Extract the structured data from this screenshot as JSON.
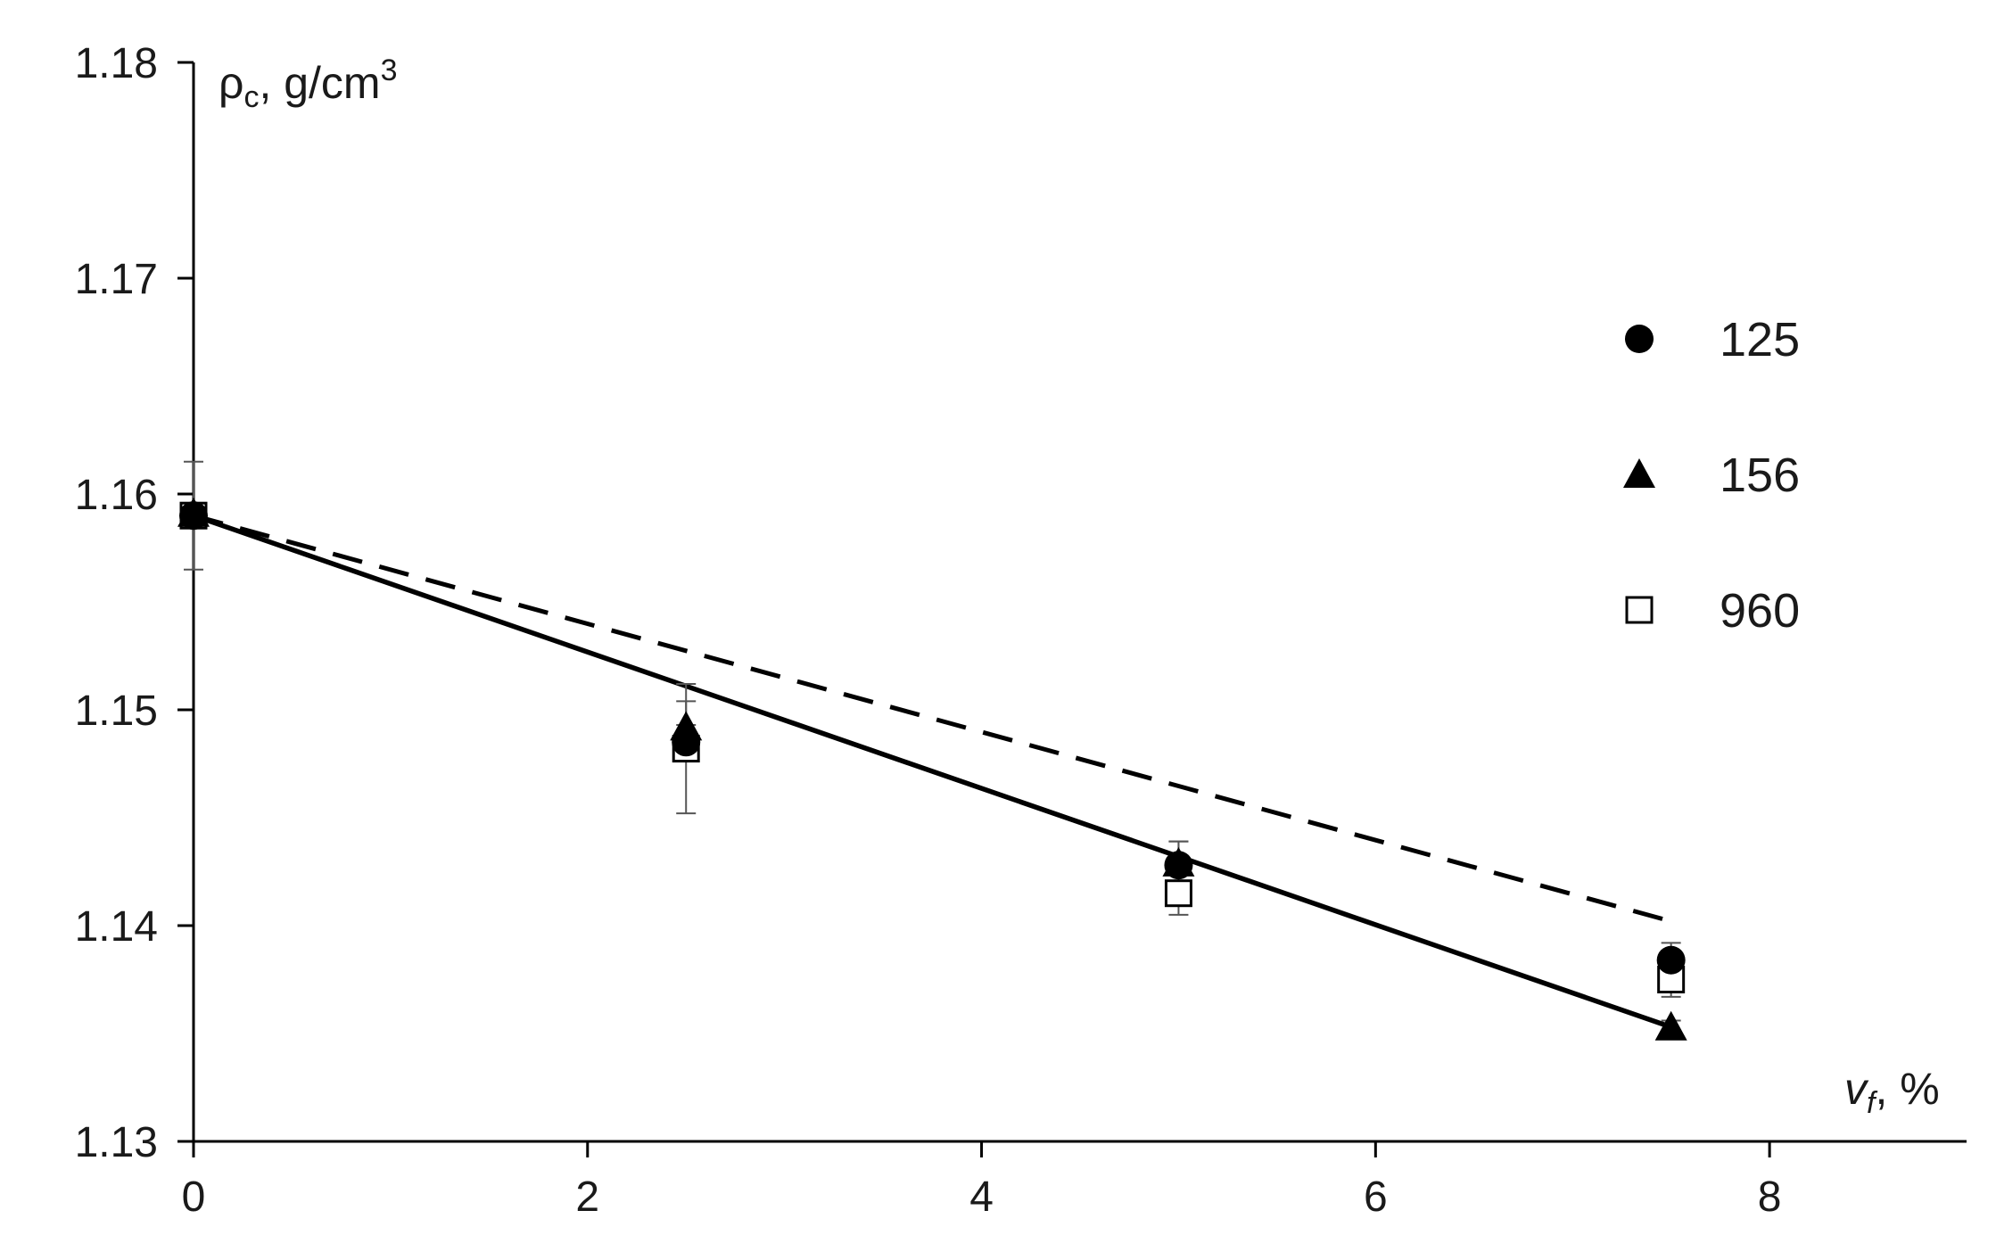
{
  "chart_data": {
    "type": "scatter",
    "title": "",
    "ylabel": {
      "base": "ρ",
      "sub": "c",
      "rest": ", g/cm",
      "sup": "3"
    },
    "xlabel": {
      "base": "v",
      "sub": "f",
      "rest": ", %"
    },
    "xlim": [
      0,
      9
    ],
    "ylim": [
      1.13,
      1.18
    ],
    "xticks": [
      0,
      2,
      4,
      6,
      8
    ],
    "xtick_labels": [
      "0",
      "2",
      "4",
      "6",
      "8"
    ],
    "yticks": [
      1.13,
      1.14,
      1.15,
      1.16,
      1.17,
      1.18
    ],
    "ytick_labels": [
      "1.13",
      "1.14",
      "1.15",
      "1.16",
      "1.17",
      "1.18"
    ],
    "grid": false,
    "legend_position": "right",
    "series": [
      {
        "name": "125",
        "marker": "circle-filled",
        "points": [
          {
            "x": 0,
            "y": 1.159,
            "err": 0.0005
          },
          {
            "x": 2.5,
            "y": 1.1485,
            "err": 0.0008
          },
          {
            "x": 5,
            "y": 1.1428,
            "err": 0.0011
          },
          {
            "x": 7.5,
            "y": 1.1384,
            "err": 0.0008
          }
        ]
      },
      {
        "name": "156",
        "marker": "triangle-filled",
        "points": [
          {
            "x": 0,
            "y": 1.1591,
            "err": 0.0003
          },
          {
            "x": 2.5,
            "y": 1.1492,
            "err": 0.0012
          },
          {
            "x": 5,
            "y": 1.1429,
            "err": 0.001
          },
          {
            "x": 7.5,
            "y": 1.1353,
            "err": 0.0003
          }
        ]
      },
      {
        "name": "960",
        "marker": "square-open",
        "points": [
          {
            "x": 0,
            "y": 1.159,
            "err": 0.0025
          },
          {
            "x": 2.5,
            "y": 1.1482,
            "err": 0.003
          },
          {
            "x": 5,
            "y": 1.1415,
            "err": 0.001
          },
          {
            "x": 7.5,
            "y": 1.1375,
            "err": 0.0008
          }
        ]
      }
    ],
    "lines": [
      {
        "style": "solid",
        "x": [
          0,
          7.5
        ],
        "y": [
          1.159,
          1.1353
        ]
      },
      {
        "style": "dashed",
        "x": [
          0,
          7.5
        ],
        "y": [
          1.159,
          1.1402
        ]
      }
    ],
    "colors": {
      "ink": "#000000",
      "errorbar": "#555555",
      "text": "#1a1a1a"
    }
  }
}
